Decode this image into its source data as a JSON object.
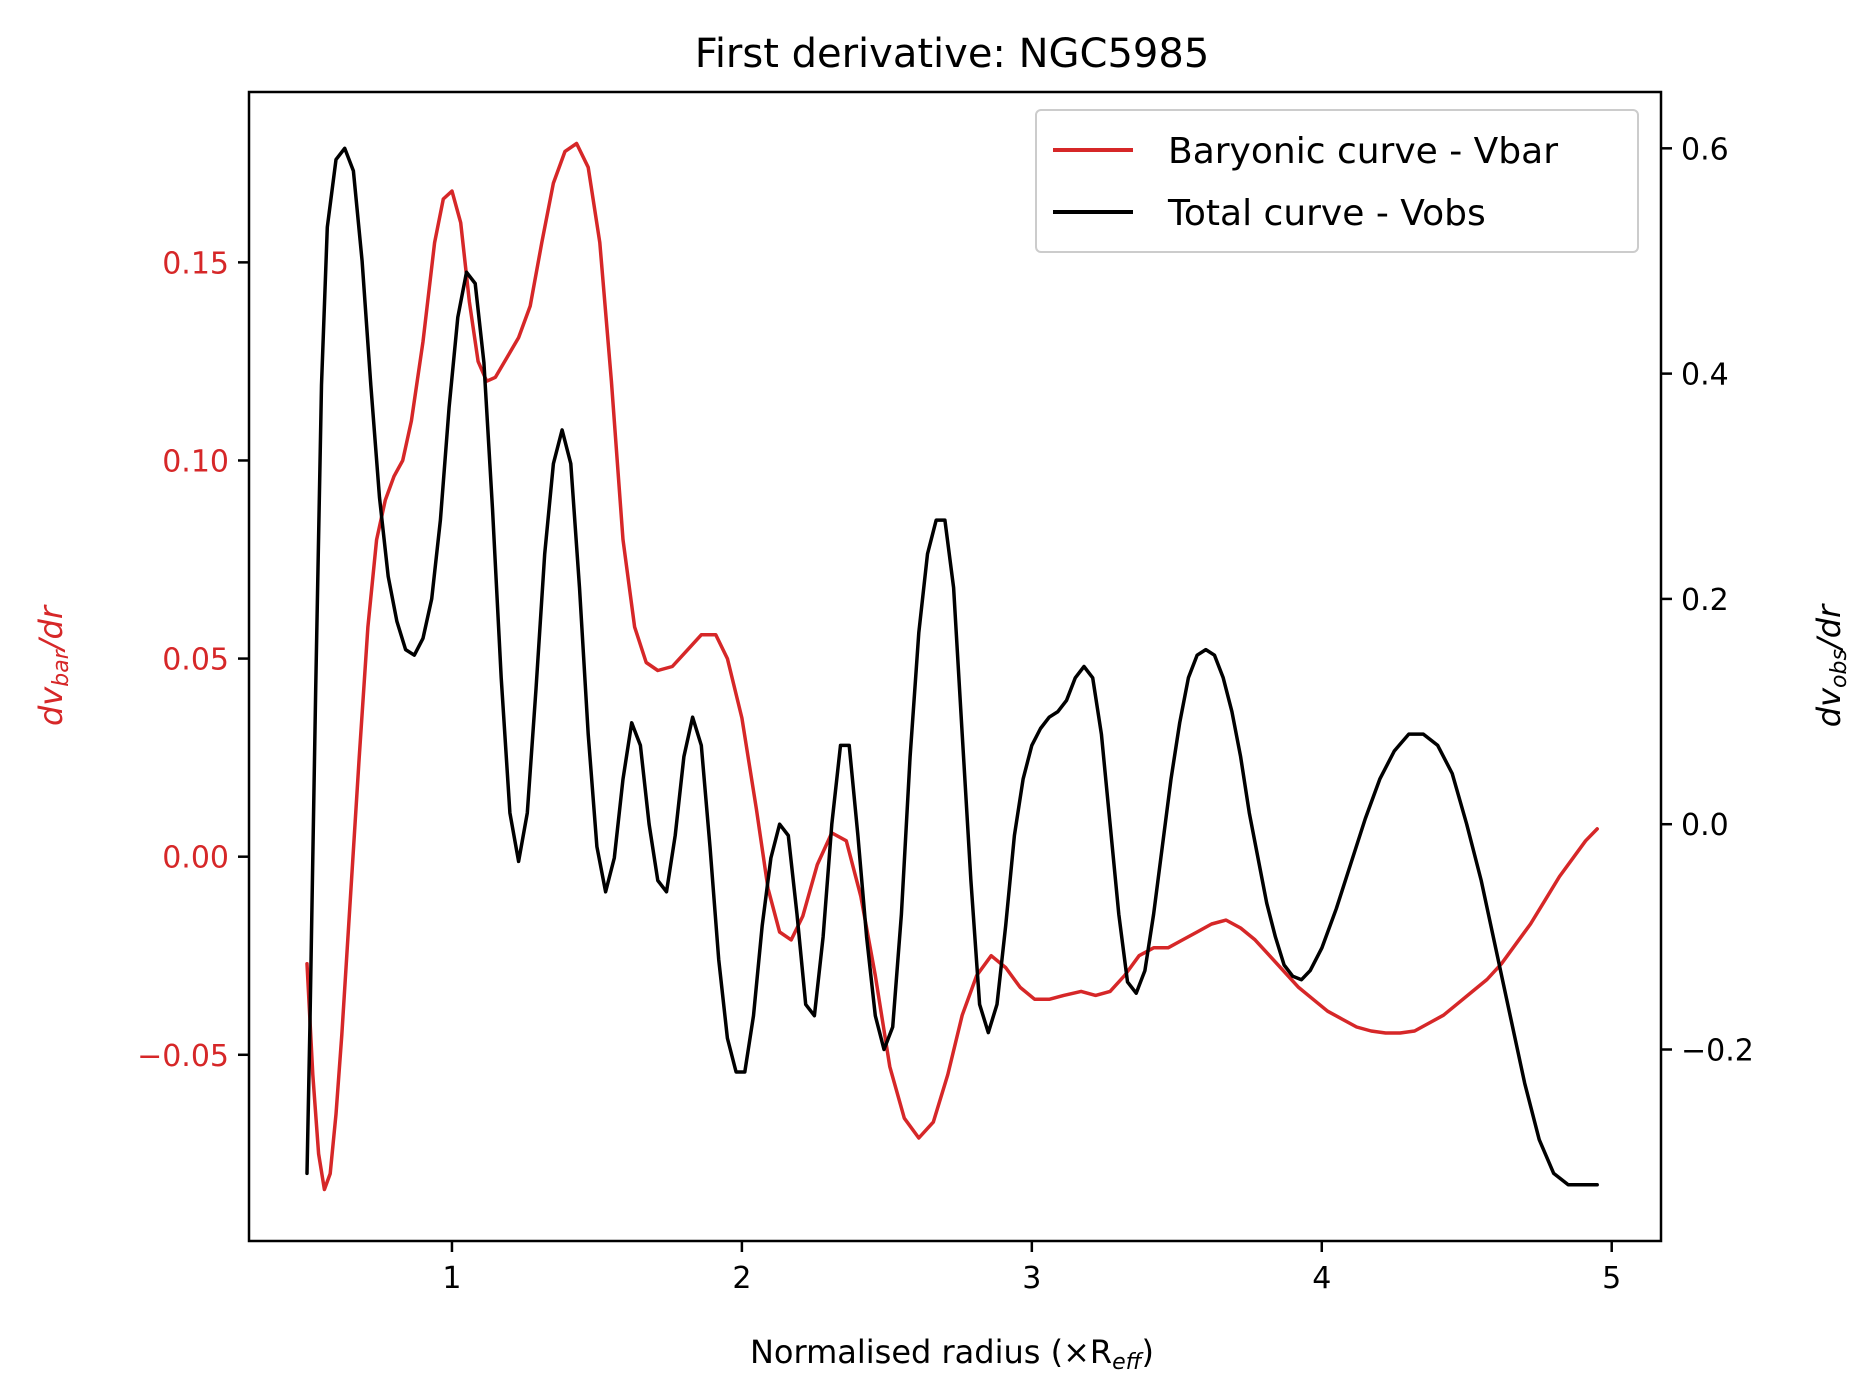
{
  "chart_data": {
    "type": "line",
    "title": "First derivative: NGC5985",
    "xlabel": "Normalised radius (×R",
    "xlabel_sub": "eff",
    "xlabel_close": ")",
    "ylabel_left": "dv",
    "ylabel_left_sub": "bar",
    "ylabel_left_suffix": "/dr",
    "ylabel_right": "dv",
    "ylabel_right_sub": "obs",
    "ylabel_right_suffix": "/dr",
    "xlim": [
      0.3,
      5.17
    ],
    "ylim_left": [
      -0.097,
      0.193
    ],
    "ylim_right": [
      -0.37,
      0.65
    ],
    "xticks": [
      1,
      2,
      3,
      4,
      5
    ],
    "xtick_labels": [
      "1",
      "2",
      "3",
      "4",
      "5"
    ],
    "yticks_left": [
      -0.05,
      0.0,
      0.05,
      0.1,
      0.15
    ],
    "ytick_labels_left": [
      "−0.05",
      "0.00",
      "0.05",
      "0.10",
      "0.15"
    ],
    "yticks_right": [
      -0.2,
      0.0,
      0.2,
      0.4,
      0.6
    ],
    "ytick_labels_right": [
      "−0.2",
      "0.0",
      "0.2",
      "0.4",
      "0.6"
    ],
    "legend": {
      "position": "top-right",
      "entries": [
        "Baryonic curve - Vbar",
        "Total curve - Vobs"
      ]
    },
    "colors": {
      "bar": "#d62728",
      "obs": "#000000",
      "axis": "#000000"
    },
    "series": [
      {
        "name": "Baryonic curve - Vbar",
        "axis": "left",
        "points": [
          [
            0.5,
            -0.027
          ],
          [
            0.52,
            -0.055
          ],
          [
            0.54,
            -0.075
          ],
          [
            0.56,
            -0.084
          ],
          [
            0.58,
            -0.08
          ],
          [
            0.6,
            -0.065
          ],
          [
            0.62,
            -0.045
          ],
          [
            0.65,
            -0.01
          ],
          [
            0.68,
            0.025
          ],
          [
            0.71,
            0.058
          ],
          [
            0.74,
            0.08
          ],
          [
            0.77,
            0.09
          ],
          [
            0.8,
            0.096
          ],
          [
            0.83,
            0.1
          ],
          [
            0.86,
            0.11
          ],
          [
            0.9,
            0.13
          ],
          [
            0.94,
            0.155
          ],
          [
            0.97,
            0.166
          ],
          [
            1.0,
            0.168
          ],
          [
            1.03,
            0.16
          ],
          [
            1.06,
            0.14
          ],
          [
            1.09,
            0.125
          ],
          [
            1.12,
            0.12
          ],
          [
            1.15,
            0.121
          ],
          [
            1.19,
            0.126
          ],
          [
            1.23,
            0.131
          ],
          [
            1.27,
            0.139
          ],
          [
            1.31,
            0.155
          ],
          [
            1.35,
            0.17
          ],
          [
            1.39,
            0.178
          ],
          [
            1.43,
            0.18
          ],
          [
            1.47,
            0.174
          ],
          [
            1.51,
            0.155
          ],
          [
            1.55,
            0.12
          ],
          [
            1.59,
            0.08
          ],
          [
            1.63,
            0.058
          ],
          [
            1.67,
            0.049
          ],
          [
            1.71,
            0.047
          ],
          [
            1.76,
            0.048
          ],
          [
            1.81,
            0.052
          ],
          [
            1.86,
            0.056
          ],
          [
            1.91,
            0.056
          ],
          [
            1.95,
            0.05
          ],
          [
            2.0,
            0.035
          ],
          [
            2.05,
            0.012
          ],
          [
            2.09,
            -0.008
          ],
          [
            2.13,
            -0.019
          ],
          [
            2.17,
            -0.021
          ],
          [
            2.21,
            -0.015
          ],
          [
            2.26,
            -0.002
          ],
          [
            2.31,
            0.006
          ],
          [
            2.36,
            0.004
          ],
          [
            2.41,
            -0.01
          ],
          [
            2.46,
            -0.03
          ],
          [
            2.51,
            -0.053
          ],
          [
            2.56,
            -0.066
          ],
          [
            2.61,
            -0.071
          ],
          [
            2.66,
            -0.067
          ],
          [
            2.71,
            -0.055
          ],
          [
            2.76,
            -0.04
          ],
          [
            2.81,
            -0.03
          ],
          [
            2.86,
            -0.025
          ],
          [
            2.91,
            -0.028
          ],
          [
            2.96,
            -0.033
          ],
          [
            3.01,
            -0.036
          ],
          [
            3.06,
            -0.036
          ],
          [
            3.11,
            -0.035
          ],
          [
            3.17,
            -0.034
          ],
          [
            3.22,
            -0.035
          ],
          [
            3.27,
            -0.034
          ],
          [
            3.32,
            -0.03
          ],
          [
            3.37,
            -0.025
          ],
          [
            3.42,
            -0.023
          ],
          [
            3.47,
            -0.023
          ],
          [
            3.52,
            -0.021
          ],
          [
            3.57,
            -0.019
          ],
          [
            3.62,
            -0.017
          ],
          [
            3.67,
            -0.016
          ],
          [
            3.72,
            -0.018
          ],
          [
            3.77,
            -0.021
          ],
          [
            3.82,
            -0.025
          ],
          [
            3.87,
            -0.029
          ],
          [
            3.92,
            -0.033
          ],
          [
            3.97,
            -0.036
          ],
          [
            4.02,
            -0.039
          ],
          [
            4.07,
            -0.041
          ],
          [
            4.12,
            -0.043
          ],
          [
            4.17,
            -0.044
          ],
          [
            4.22,
            -0.0445
          ],
          [
            4.27,
            -0.0445
          ],
          [
            4.32,
            -0.044
          ],
          [
            4.37,
            -0.042
          ],
          [
            4.42,
            -0.04
          ],
          [
            4.47,
            -0.037
          ],
          [
            4.52,
            -0.034
          ],
          [
            4.57,
            -0.031
          ],
          [
            4.62,
            -0.027
          ],
          [
            4.67,
            -0.022
          ],
          [
            4.72,
            -0.017
          ],
          [
            4.77,
            -0.011
          ],
          [
            4.82,
            -0.005
          ],
          [
            4.87,
            0.0
          ],
          [
            4.91,
            0.004
          ],
          [
            4.95,
            0.007
          ]
        ]
      },
      {
        "name": "Total curve - Vobs",
        "axis": "right",
        "points": [
          [
            0.5,
            -0.31
          ],
          [
            0.51,
            -0.18
          ],
          [
            0.53,
            0.12
          ],
          [
            0.55,
            0.39
          ],
          [
            0.57,
            0.53
          ],
          [
            0.6,
            0.59
          ],
          [
            0.63,
            0.6
          ],
          [
            0.66,
            0.58
          ],
          [
            0.69,
            0.5
          ],
          [
            0.72,
            0.39
          ],
          [
            0.75,
            0.29
          ],
          [
            0.78,
            0.22
          ],
          [
            0.81,
            0.18
          ],
          [
            0.84,
            0.155
          ],
          [
            0.87,
            0.15
          ],
          [
            0.9,
            0.165
          ],
          [
            0.93,
            0.2
          ],
          [
            0.96,
            0.27
          ],
          [
            0.99,
            0.37
          ],
          [
            1.02,
            0.45
          ],
          [
            1.05,
            0.49
          ],
          [
            1.08,
            0.48
          ],
          [
            1.11,
            0.41
          ],
          [
            1.14,
            0.28
          ],
          [
            1.17,
            0.13
          ],
          [
            1.2,
            0.01
          ],
          [
            1.23,
            -0.033
          ],
          [
            1.26,
            0.01
          ],
          [
            1.29,
            0.12
          ],
          [
            1.32,
            0.24
          ],
          [
            1.35,
            0.32
          ],
          [
            1.38,
            0.35
          ],
          [
            1.41,
            0.32
          ],
          [
            1.44,
            0.21
          ],
          [
            1.47,
            0.08
          ],
          [
            1.5,
            -0.02
          ],
          [
            1.53,
            -0.06
          ],
          [
            1.56,
            -0.03
          ],
          [
            1.59,
            0.04
          ],
          [
            1.62,
            0.09
          ],
          [
            1.65,
            0.07
          ],
          [
            1.68,
            0.0
          ],
          [
            1.71,
            -0.05
          ],
          [
            1.74,
            -0.06
          ],
          [
            1.77,
            -0.01
          ],
          [
            1.8,
            0.06
          ],
          [
            1.83,
            0.095
          ],
          [
            1.86,
            0.07
          ],
          [
            1.89,
            -0.02
          ],
          [
            1.92,
            -0.12
          ],
          [
            1.95,
            -0.19
          ],
          [
            1.98,
            -0.22
          ],
          [
            2.01,
            -0.22
          ],
          [
            2.04,
            -0.17
          ],
          [
            2.07,
            -0.09
          ],
          [
            2.1,
            -0.03
          ],
          [
            2.13,
            0.0
          ],
          [
            2.16,
            -0.01
          ],
          [
            2.19,
            -0.08
          ],
          [
            2.22,
            -0.16
          ],
          [
            2.25,
            -0.17
          ],
          [
            2.28,
            -0.1
          ],
          [
            2.31,
            0.0
          ],
          [
            2.34,
            0.07
          ],
          [
            2.37,
            0.07
          ],
          [
            2.4,
            -0.01
          ],
          [
            2.43,
            -0.1
          ],
          [
            2.46,
            -0.17
          ],
          [
            2.49,
            -0.2
          ],
          [
            2.52,
            -0.18
          ],
          [
            2.55,
            -0.08
          ],
          [
            2.58,
            0.06
          ],
          [
            2.61,
            0.17
          ],
          [
            2.64,
            0.24
          ],
          [
            2.67,
            0.27
          ],
          [
            2.7,
            0.27
          ],
          [
            2.73,
            0.21
          ],
          [
            2.76,
            0.08
          ],
          [
            2.79,
            -0.05
          ],
          [
            2.82,
            -0.16
          ],
          [
            2.85,
            -0.185
          ],
          [
            2.88,
            -0.16
          ],
          [
            2.91,
            -0.09
          ],
          [
            2.94,
            -0.01
          ],
          [
            2.97,
            0.04
          ],
          [
            3.0,
            0.07
          ],
          [
            3.03,
            0.085
          ],
          [
            3.06,
            0.095
          ],
          [
            3.09,
            0.1
          ],
          [
            3.12,
            0.11
          ],
          [
            3.15,
            0.13
          ],
          [
            3.18,
            0.14
          ],
          [
            3.21,
            0.13
          ],
          [
            3.24,
            0.08
          ],
          [
            3.27,
            0.0
          ],
          [
            3.3,
            -0.08
          ],
          [
            3.33,
            -0.14
          ],
          [
            3.36,
            -0.15
          ],
          [
            3.39,
            -0.13
          ],
          [
            3.42,
            -0.08
          ],
          [
            3.45,
            -0.02
          ],
          [
            3.48,
            0.04
          ],
          [
            3.51,
            0.09
          ],
          [
            3.54,
            0.13
          ],
          [
            3.57,
            0.15
          ],
          [
            3.6,
            0.155
          ],
          [
            3.63,
            0.15
          ],
          [
            3.66,
            0.13
          ],
          [
            3.69,
            0.1
          ],
          [
            3.72,
            0.06
          ],
          [
            3.75,
            0.01
          ],
          [
            3.78,
            -0.03
          ],
          [
            3.81,
            -0.07
          ],
          [
            3.84,
            -0.1
          ],
          [
            3.87,
            -0.125
          ],
          [
            3.9,
            -0.135
          ],
          [
            3.93,
            -0.138
          ],
          [
            3.96,
            -0.13
          ],
          [
            4.0,
            -0.11
          ],
          [
            4.05,
            -0.075
          ],
          [
            4.1,
            -0.035
          ],
          [
            4.15,
            0.005
          ],
          [
            4.2,
            0.04
          ],
          [
            4.25,
            0.065
          ],
          [
            4.3,
            0.08
          ],
          [
            4.35,
            0.08
          ],
          [
            4.4,
            0.07
          ],
          [
            4.45,
            0.045
          ],
          [
            4.5,
            0.0
          ],
          [
            4.55,
            -0.05
          ],
          [
            4.6,
            -0.11
          ],
          [
            4.65,
            -0.17
          ],
          [
            4.7,
            -0.23
          ],
          [
            4.75,
            -0.28
          ],
          [
            4.8,
            -0.31
          ],
          [
            4.85,
            -0.32
          ],
          [
            4.9,
            -0.32
          ],
          [
            4.95,
            -0.32
          ]
        ]
      }
    ]
  }
}
